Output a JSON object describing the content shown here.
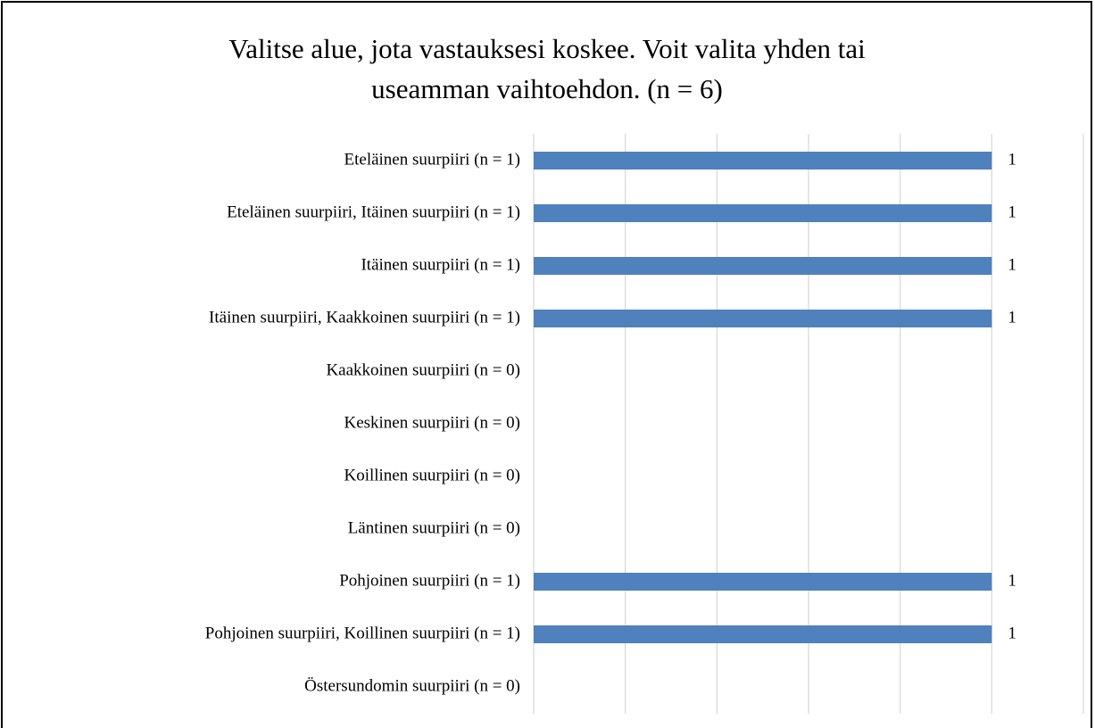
{
  "chart_data": {
    "type": "hbar",
    "title": "Valitse alue, jota vastauksesi koskee. Voit valita yhden tai useamman vaihtoehdon. (n = 6)",
    "categories": [
      "Eteläinen suurpiiri (n = 1)",
      "Eteläinen suurpiiri, Itäinen suurpiiri (n = 1)",
      "Itäinen suurpiiri (n = 1)",
      "Itäinen suurpiiri, Kaakkoinen suurpiiri (n = 1)",
      "Kaakkoinen suurpiiri (n = 0)",
      "Keskinen suurpiiri (n = 0)",
      "Koillinen suurpiiri (n = 0)",
      "Läntinen suurpiiri (n = 0)",
      "Pohjoinen suurpiiri (n = 1)",
      "Pohjoinen suurpiiri, Koillinen suurpiiri (n = 1)",
      "Östersundomin suurpiiri (n = 0)"
    ],
    "values": [
      1,
      1,
      1,
      1,
      0,
      0,
      0,
      0,
      1,
      1,
      0
    ],
    "value_labels": [
      "1",
      "1",
      "1",
      "1",
      null,
      null,
      null,
      null,
      "1",
      "1",
      null
    ],
    "color": "#4f81bd",
    "xlim": [
      0,
      1.2
    ],
    "xticks": [
      0,
      0.2,
      0.4,
      0.6,
      0.8,
      1,
      1.2
    ],
    "grid": true
  }
}
